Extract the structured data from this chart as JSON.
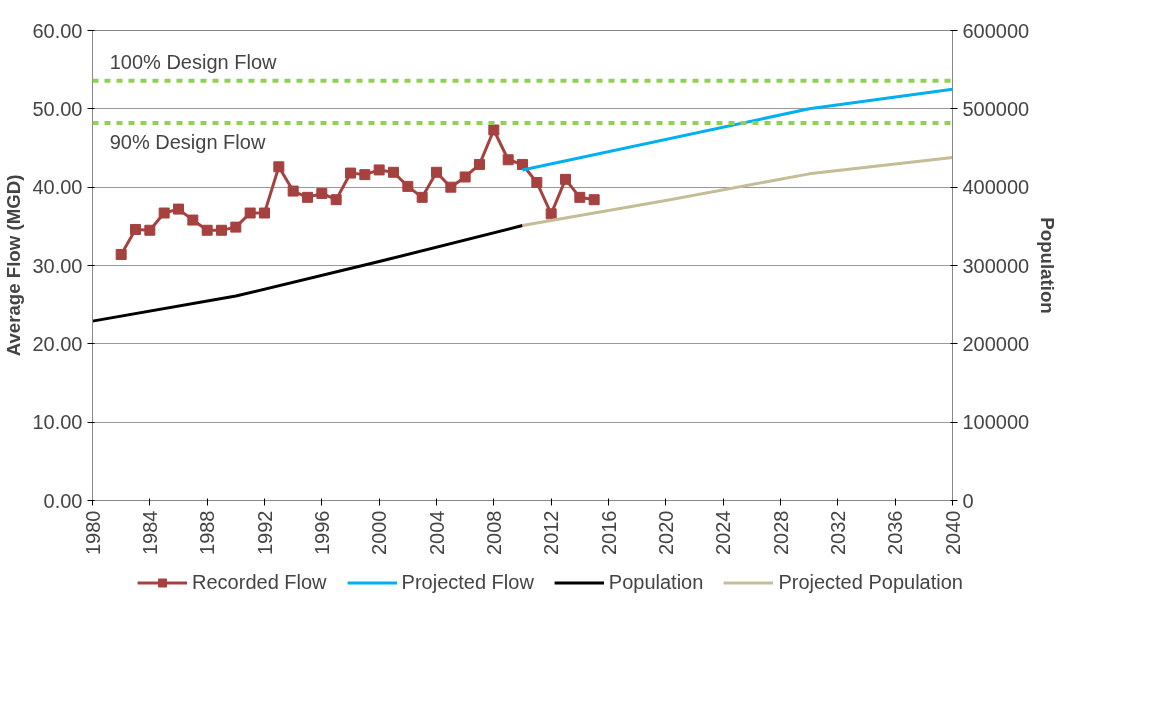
{
  "chart_data": {
    "type": "line",
    "ylabel": "Average Flow (MGD)",
    "y2label": "Population",
    "xlim": [
      1980,
      2040
    ],
    "xticks": [
      1980,
      1984,
      1988,
      1992,
      1996,
      2000,
      2004,
      2008,
      2012,
      2016,
      2020,
      2024,
      2028,
      2032,
      2036,
      2040
    ],
    "ylim": [
      0,
      60
    ],
    "yticks": [
      {
        "value": 0,
        "label": "0.00"
      },
      {
        "value": 10,
        "label": "10.00"
      },
      {
        "value": 20,
        "label": "20.00"
      },
      {
        "value": 30,
        "label": "30.00"
      },
      {
        "value": 40,
        "label": "40.00"
      },
      {
        "value": 50,
        "label": "50.00"
      },
      {
        "value": 60,
        "label": "60.00"
      }
    ],
    "y2lim": [
      0,
      600000
    ],
    "y2ticks": [
      {
        "value": 0,
        "label": "0"
      },
      {
        "value": 100000,
        "label": "100000"
      },
      {
        "value": 200000,
        "label": "200000"
      },
      {
        "value": 300000,
        "label": "300000"
      },
      {
        "value": 400000,
        "label": "400000"
      },
      {
        "value": 500000,
        "label": "500000"
      },
      {
        "value": 600000,
        "label": "600000"
      }
    ],
    "grid": "y",
    "legend": "bottom",
    "ref_lines": [
      {
        "axis": "y",
        "value": 53.6,
        "label": "100% Design Flow",
        "color": "#92d050",
        "line_style": "dashed"
      },
      {
        "axis": "y",
        "value": 48.2,
        "label": "90% Design Flow",
        "color": "#92d050",
        "line_style": "dashed"
      }
    ],
    "series": [
      {
        "name": "Recorded Flow",
        "color": "#a5423f",
        "marker": "square",
        "x": [
          1982,
          1983,
          1984,
          1985,
          1986,
          1987,
          1988,
          1989,
          1990,
          1991,
          1992,
          1993,
          1994,
          1995,
          1996,
          1997,
          1998,
          1999,
          2000,
          2001,
          2002,
          2003,
          2004,
          2005,
          2006,
          2007,
          2008,
          2009,
          2010,
          2011,
          2012,
          2013,
          2014,
          2015
        ],
        "values": [
          31.4,
          34.6,
          34.5,
          36.7,
          37.2,
          35.8,
          34.5,
          34.5,
          34.9,
          36.7,
          36.7,
          42.6,
          39.5,
          38.7,
          39.2,
          38.4,
          41.8,
          41.6,
          42.2,
          41.9,
          40.1,
          38.7,
          41.9,
          40.0,
          41.3,
          42.9,
          47.3,
          43.5,
          42.9,
          40.6,
          36.6,
          41.0,
          38.7,
          38.4
        ]
      },
      {
        "name": "Projected Flow",
        "color": "#00b0f0",
        "x": [
          2010,
          2030,
          2040
        ],
        "values": [
          42.2,
          50.0,
          52.5
        ]
      },
      {
        "name": "Population",
        "color": "#000000",
        "axis": "y2",
        "x": [
          1980,
          1990,
          2000,
          2010
        ],
        "values": [
          229000,
          261000,
          305000,
          351000
        ]
      },
      {
        "name": "Projected Population",
        "color": "#c4bd97",
        "axis": "y2",
        "x": [
          2010,
          2020,
          2030,
          2040
        ],
        "values": [
          351000,
          383000,
          417000,
          438000
        ]
      }
    ]
  }
}
